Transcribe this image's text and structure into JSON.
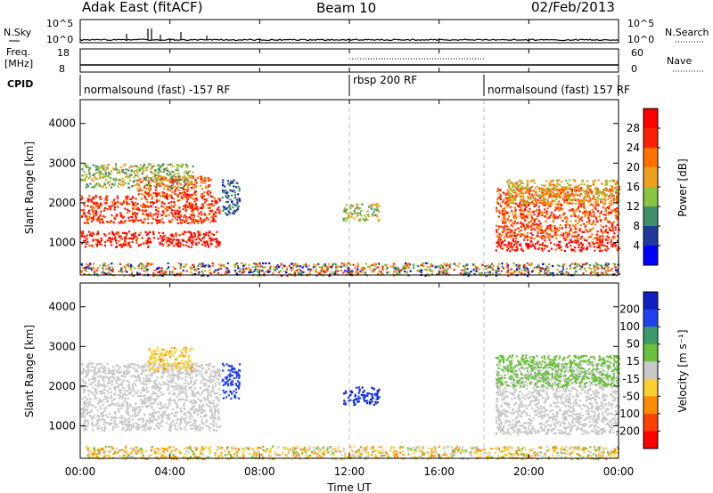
{
  "header": {
    "station": "Adak East (fitACF)",
    "beam": "Beam 10",
    "date": "02/Feb/2013"
  },
  "noise_panel": {
    "left_label": "N.Sky",
    "right_label": "N.Search",
    "left_ticks": [
      "10^5",
      "10^0"
    ],
    "right_ticks": [
      "10^5",
      "10^0"
    ]
  },
  "freq_panel": {
    "left_label_1": "Freq.",
    "left_label_2": "[MHz]",
    "left_ticks": [
      "18",
      "8"
    ],
    "right_label": "Nave",
    "right_ticks": [
      "60",
      "0"
    ]
  },
  "cpid": {
    "label": "CPID",
    "segments": [
      {
        "start_hour": 0,
        "end_hour": 12,
        "label": "normalsound (fast) -157 RF"
      },
      {
        "start_hour": 12,
        "end_hour": 18,
        "label": "rbsp 200 RF"
      },
      {
        "start_hour": 18,
        "end_hour": 24,
        "label": "normalsound (fast) 157 RF"
      }
    ]
  },
  "time_axis": {
    "label": "Time UT",
    "ticks": [
      "00:00",
      "04:00",
      "08:00",
      "12:00",
      "16:00",
      "20:00",
      "00:00"
    ]
  },
  "power_colorbar": {
    "label": "Power [dB]",
    "ticks": [
      "4",
      "8",
      "12",
      "16",
      "20",
      "24",
      "28"
    ],
    "colors": [
      "#0000ff",
      "#1f3a9a",
      "#3f8f6f",
      "#8ac440",
      "#f0a020",
      "#ff7000",
      "#ff2000",
      "#ff0000"
    ]
  },
  "velocity_colorbar": {
    "label": "Velocity [m s⁻¹]",
    "ticks": [
      "200",
      "100",
      "50",
      "15",
      "-15",
      "-50",
      "-100",
      "-200"
    ],
    "colors": [
      "#1020c0",
      "#2040f0",
      "#3a9a6a",
      "#6cc040",
      "#c8c8c8",
      "#f8d030",
      "#ff8c00",
      "#ff4000",
      "#ff0000"
    ]
  },
  "chart_data": [
    {
      "type": "heatmap",
      "panel": "power",
      "xlabel": "",
      "ylabel": "Slant Range [km]",
      "x_range_hours": [
        0,
        24
      ],
      "ylim": [
        180,
        4600
      ],
      "y_ticks": [
        1000,
        2000,
        3000,
        4000
      ],
      "echo_regions": [
        {
          "t0": 0.0,
          "t1": 6.2,
          "r0": 900,
          "r1": 1300,
          "power_db": 28
        },
        {
          "t0": 0.0,
          "t1": 6.2,
          "r0": 1500,
          "r1": 2200,
          "power_db": 26
        },
        {
          "t0": 2.5,
          "t1": 5.8,
          "r0": 2200,
          "r1": 2700,
          "power_db": 24
        },
        {
          "t0": 0.0,
          "t1": 5.0,
          "r0": 2400,
          "r1": 3000,
          "power_db": 14
        },
        {
          "t0": 6.3,
          "t1": 7.1,
          "r0": 1700,
          "r1": 2600,
          "power_db": 8
        },
        {
          "t0": 11.7,
          "t1": 13.3,
          "r0": 1550,
          "r1": 2000,
          "power_db": 14
        },
        {
          "t0": 18.5,
          "t1": 24.0,
          "r0": 800,
          "r1": 1100,
          "power_db": 28
        },
        {
          "t0": 18.5,
          "t1": 24.0,
          "r0": 1100,
          "r1": 2400,
          "power_db": 24
        },
        {
          "t0": 19.0,
          "t1": 24.0,
          "r0": 2000,
          "r1": 2600,
          "power_db": 18
        },
        {
          "t0": 0.0,
          "t1": 24.0,
          "r0": 180,
          "r1": 500,
          "power_db": 10
        }
      ]
    },
    {
      "type": "heatmap",
      "panel": "velocity",
      "xlabel": "Time UT",
      "ylabel": "Slant Range [km]",
      "x_range_hours": [
        0,
        24
      ],
      "ylim": [
        180,
        4600
      ],
      "y_ticks": [
        1000,
        2000,
        3000,
        4000
      ],
      "echo_regions": [
        {
          "t0": 0.0,
          "t1": 6.2,
          "r0": 900,
          "r1": 2600,
          "velocity": 0
        },
        {
          "t0": 3.0,
          "t1": 5.0,
          "r0": 2400,
          "r1": 3000,
          "velocity": -40
        },
        {
          "t0": 6.3,
          "t1": 7.1,
          "r0": 1700,
          "r1": 2600,
          "velocity": 150
        },
        {
          "t0": 11.7,
          "t1": 13.3,
          "r0": 1550,
          "r1": 2000,
          "velocity": 200
        },
        {
          "t0": 18.5,
          "t1": 24.0,
          "r0": 800,
          "r1": 2600,
          "velocity": 0
        },
        {
          "t0": 18.5,
          "t1": 24.0,
          "r0": 2000,
          "r1": 2800,
          "velocity": 30
        },
        {
          "t0": 0.0,
          "t1": 24.0,
          "r0": 180,
          "r1": 500,
          "velocity": -30
        }
      ]
    }
  ]
}
